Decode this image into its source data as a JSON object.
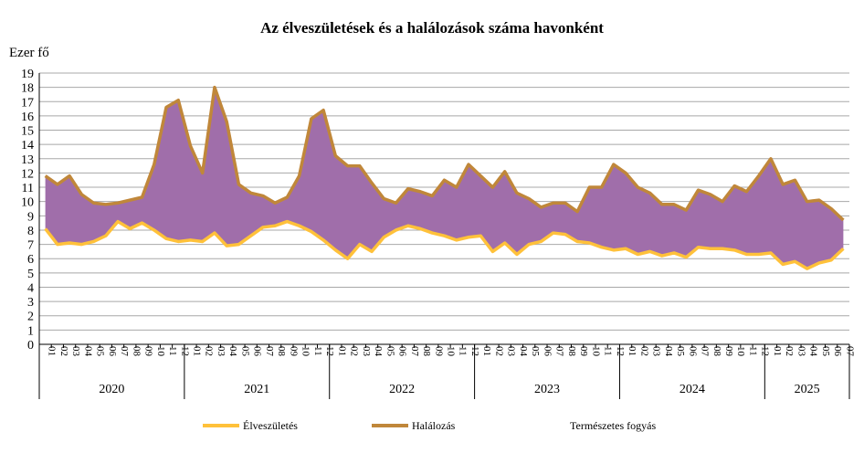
{
  "chart_data": {
    "type": "area",
    "title": "Az élveszületések és a halálozások száma havonként",
    "ylabel": "Ezer fő",
    "ylim": [
      0,
      19
    ],
    "yticks": [
      0,
      1,
      2,
      3,
      4,
      5,
      6,
      7,
      8,
      9,
      10,
      11,
      12,
      13,
      14,
      15,
      16,
      17,
      18,
      19
    ],
    "grid": true,
    "legend_position": "bottom",
    "years": [
      "2020",
      "2021",
      "2022",
      "2023",
      "2024",
      "2025"
    ],
    "months_per_year": [
      12,
      12,
      12,
      12,
      12,
      7
    ],
    "month_labels": [
      "01",
      "02",
      "03",
      "04",
      "05",
      "06",
      "07",
      "08",
      "09",
      "10",
      "11",
      "12"
    ],
    "series": [
      {
        "name": "Élveszületés",
        "color": "#FFC13A",
        "values": [
          8.1,
          7.0,
          7.1,
          7.0,
          7.2,
          7.6,
          8.6,
          8.1,
          8.5,
          8.0,
          7.4,
          7.2,
          7.3,
          7.2,
          7.8,
          6.9,
          7.0,
          7.6,
          8.2,
          8.3,
          8.6,
          8.3,
          7.9,
          7.3,
          6.6,
          6.0,
          7.0,
          6.5,
          7.5,
          8.0,
          8.3,
          8.1,
          7.8,
          7.6,
          7.3,
          7.5,
          7.6,
          6.5,
          7.1,
          6.3,
          7.0,
          7.2,
          7.8,
          7.7,
          7.2,
          7.1,
          6.8,
          6.6,
          6.7,
          6.3,
          6.5,
          6.2,
          6.4,
          6.1,
          6.8,
          6.7,
          6.7,
          6.6,
          6.3,
          6.3,
          6.4,
          5.6,
          5.8,
          5.3,
          5.7,
          5.9,
          6.7
        ]
      },
      {
        "name": "Halálozás",
        "color": "#C0873A",
        "values": [
          11.8,
          11.2,
          11.8,
          10.5,
          9.9,
          9.8,
          9.9,
          10.1,
          10.3,
          12.6,
          16.6,
          17.1,
          13.9,
          12.0,
          18.0,
          15.6,
          11.2,
          10.6,
          10.4,
          9.9,
          10.3,
          11.8,
          15.8,
          16.4,
          13.2,
          12.5,
          12.5,
          11.3,
          10.2,
          9.9,
          10.9,
          10.7,
          10.4,
          11.5,
          11.0,
          12.6,
          11.8,
          11.0,
          12.1,
          10.6,
          10.2,
          9.6,
          9.9,
          9.9,
          9.3,
          11.0,
          11.0,
          12.6,
          12.0,
          11.0,
          10.6,
          9.8,
          9.8,
          9.4,
          10.8,
          10.5,
          10.0,
          11.1,
          10.7,
          11.8,
          13.0,
          11.2,
          11.5,
          10.0,
          10.1,
          9.5,
          8.7
        ]
      },
      {
        "name": "Természetes fogyás",
        "color": "#A06EAA",
        "values": []
      }
    ]
  }
}
